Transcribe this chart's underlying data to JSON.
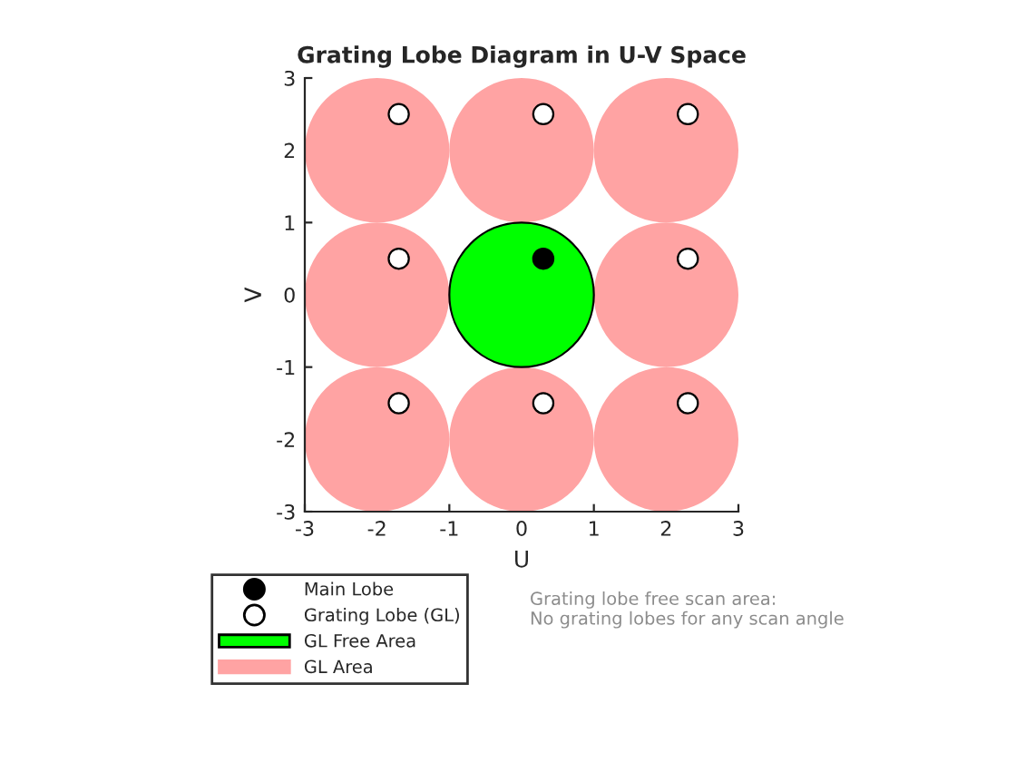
{
  "chart_data": {
    "type": "bubble",
    "title": "Grating Lobe Diagram in U-V Space",
    "xlabel": "U",
    "ylabel": "V",
    "xlim": [
      -3,
      3
    ],
    "ylim": [
      -3,
      3
    ],
    "xticks": [
      -3,
      -2,
      -1,
      0,
      1,
      2,
      3
    ],
    "yticks": [
      -3,
      -2,
      -1,
      0,
      1,
      2,
      3
    ],
    "grid": false,
    "legend": "bottom left",
    "series": [
      {
        "name": "GL Area",
        "color": "#ffa3a3",
        "x": [
          -2,
          0,
          2,
          -2,
          2,
          -2,
          0,
          2
        ],
        "values": [
          2,
          2,
          2,
          0,
          0,
          -2,
          -2,
          -2
        ],
        "sizes": [
          1,
          1,
          1,
          1,
          1,
          1,
          1,
          1
        ]
      },
      {
        "name": "GL Free Area",
        "color": "#00ff00",
        "x": [
          0
        ],
        "values": [
          0
        ],
        "sizes": [
          1
        ]
      },
      {
        "name": "Main Lobe",
        "type": "scatter",
        "color": "#000000",
        "marker": "circle",
        "x": [
          0.3
        ],
        "values": [
          0.5
        ]
      },
      {
        "name": "Grating Lobe (GL)",
        "type": "scatter",
        "color": "#ffffff",
        "marker": "circle",
        "x": [
          -1.7,
          0.3,
          2.3,
          -1.7,
          2.3,
          -1.7,
          0.3,
          2.3
        ],
        "values": [
          2.5,
          2.5,
          2.5,
          0.5,
          0.5,
          -1.5,
          -1.5,
          -1.5
        ]
      }
    ],
    "annotations": [
      "Grating lobe free scan area:\nNo grating lobes for any scan angle"
    ]
  }
}
